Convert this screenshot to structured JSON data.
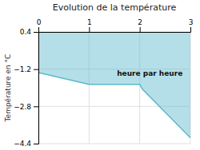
{
  "chart_data": {
    "type": "area",
    "title": "Evolution de la température",
    "ylabel": "Température en °C",
    "annotations": [
      {
        "text": "heure par heure",
        "x": 1.55,
        "y": -1.25
      }
    ],
    "x": [
      0,
      1.0,
      2.0,
      2.05,
      3.0
    ],
    "values": [
      -1.35,
      -1.85,
      -1.85,
      -2.05,
      -4.15
    ],
    "color": "#5bb8cc",
    "xlim": [
      0,
      3
    ],
    "ylim": [
      -4.4,
      0.4
    ],
    "xticks": [
      0,
      1,
      2,
      3
    ],
    "yticks": [
      0.4,
      -1.2,
      -2.8,
      -4.4
    ],
    "grid": true
  }
}
